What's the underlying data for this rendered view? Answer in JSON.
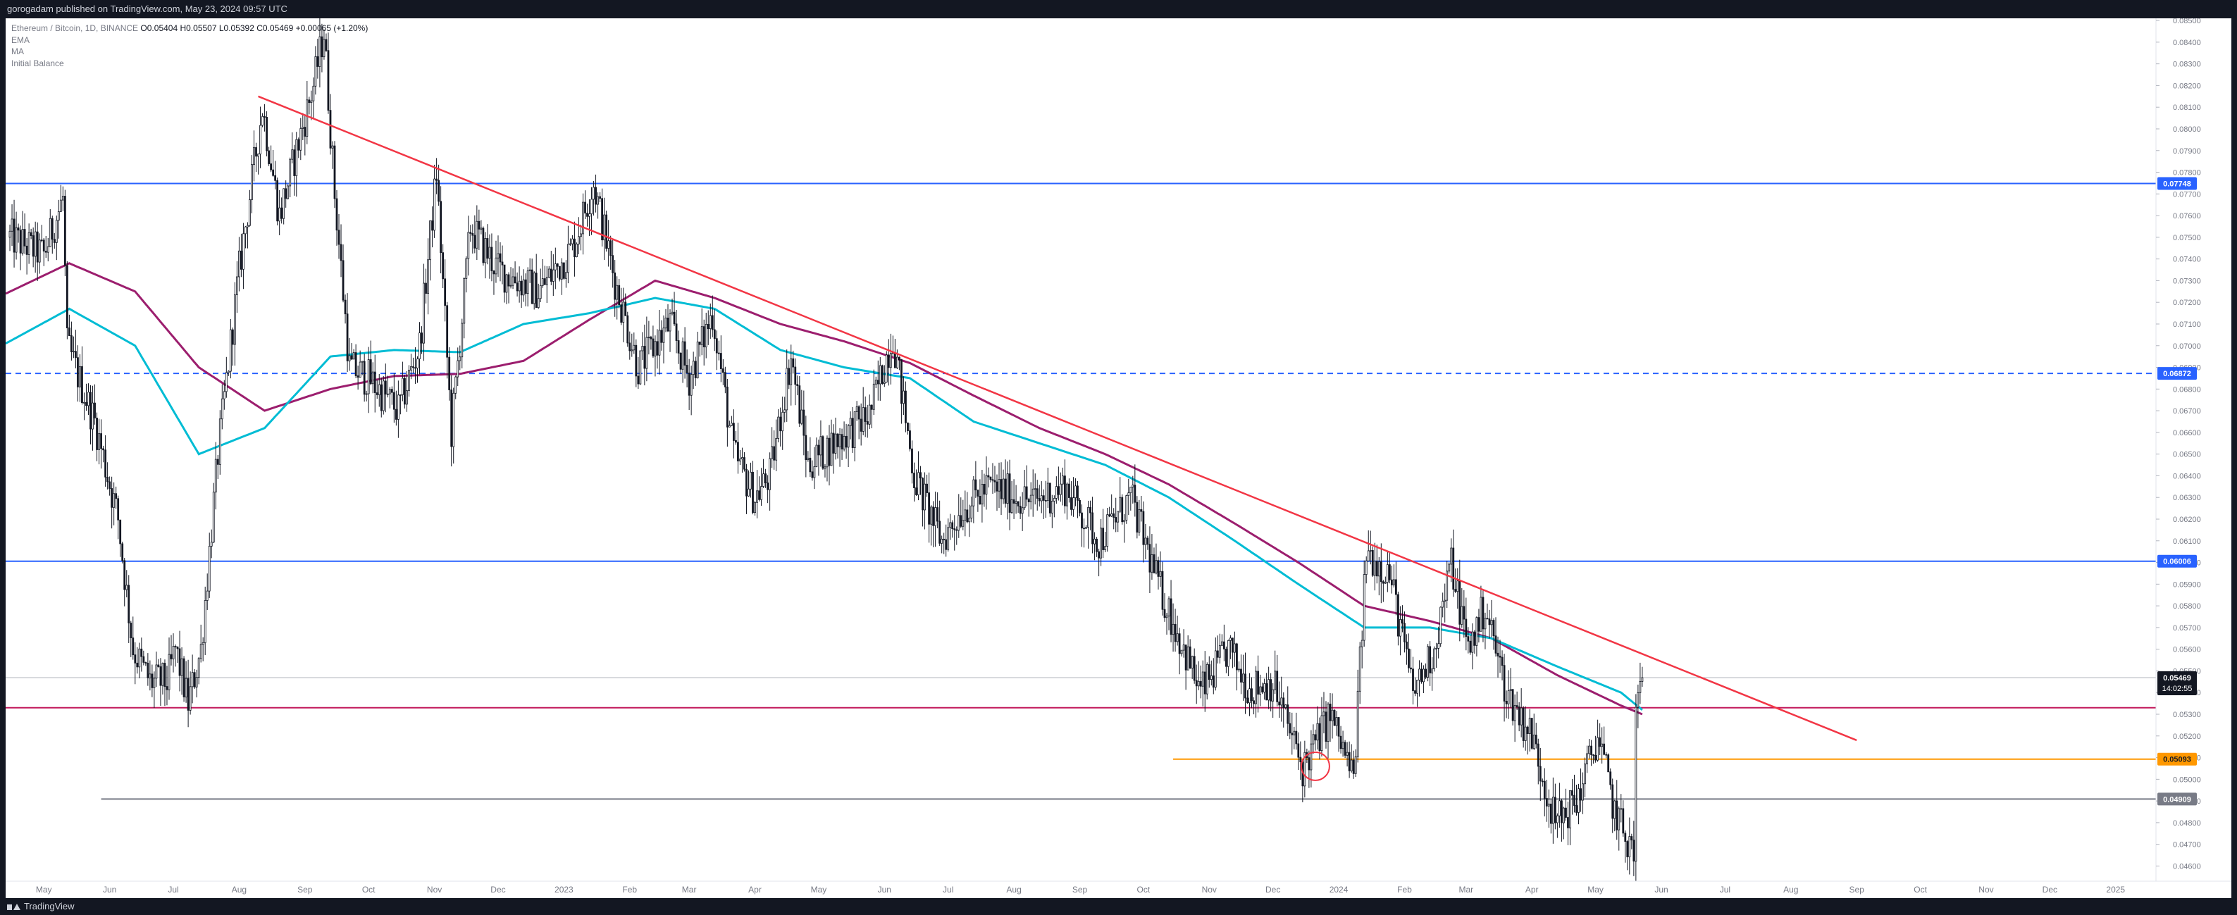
{
  "header": {
    "publisher": "gorogadam published on TradingView.com, May 23, 2024 09:57 UTC"
  },
  "legend": {
    "symbol": "Ethereum / Bitcoin, 1D, BINANCE",
    "ohlc": "O0.05404 H0.05507 L0.05392 C0.05469 +0.00065 (+1.20%)",
    "indicators": [
      "EMA",
      "MA",
      "Initial Balance"
    ]
  },
  "footer": {
    "brand": "TradingView"
  },
  "colors": {
    "ema": "#00bcd4",
    "ma": "#9c1e6e",
    "trendline": "#f23645",
    "hline_blue": "#2962ff",
    "hline_support_red": "#c2185b",
    "hline_orange": "#ff9800",
    "hline_gray": "#787b86",
    "candle": "#131722"
  },
  "chart_data": {
    "type": "candlestick",
    "symbol": "ETH/BTC",
    "timeframe": "1D",
    "exchange": "BINANCE",
    "ylim": [
      0.0453,
      0.0851
    ],
    "y_ticks": [
      "0.08500",
      "0.08400",
      "0.08300",
      "0.08200",
      "0.08100",
      "0.08000",
      "0.07900",
      "0.07800",
      "0.07700",
      "0.07600",
      "0.07500",
      "0.07400",
      "0.07300",
      "0.07200",
      "0.07100",
      "0.07000",
      "0.06900",
      "0.06800",
      "0.06700",
      "0.06600",
      "0.06500",
      "0.06400",
      "0.06300",
      "0.06200",
      "0.06100",
      "0.06000",
      "0.05900",
      "0.05800",
      "0.05700",
      "0.05600",
      "0.05500",
      "0.05400",
      "0.05300",
      "0.05200",
      "0.05100",
      "0.05000",
      "0.04900",
      "0.04800",
      "0.04700",
      "0.04600"
    ],
    "x_ticks": [
      "May",
      "Jun",
      "Jul",
      "Aug",
      "Sep",
      "Oct",
      "Nov",
      "Dec",
      "2023",
      "Feb",
      "Mar",
      "Apr",
      "May",
      "Jun",
      "Jul",
      "Aug",
      "Sep",
      "Oct",
      "Nov",
      "Dec",
      "2024",
      "Feb",
      "Mar",
      "Apr",
      "May",
      "Jun",
      "Jul",
      "Aug",
      "Sep",
      "Oct",
      "Nov",
      "Dec",
      "2025"
    ],
    "x_range": [
      "2022-04-13",
      "2025-01-20"
    ],
    "price_path": [
      [
        "2022-04-15",
        0.075
      ],
      [
        "2022-05-01",
        0.0742
      ],
      [
        "2022-05-10",
        0.0768
      ],
      [
        "2022-05-12",
        0.07
      ],
      [
        "2022-05-25",
        0.0665
      ],
      [
        "2022-06-05",
        0.062
      ],
      [
        "2022-06-12",
        0.056
      ],
      [
        "2022-06-20",
        0.0545
      ],
      [
        "2022-06-28",
        0.0545
      ],
      [
        "2022-07-02",
        0.056
      ],
      [
        "2022-07-08",
        0.0535
      ],
      [
        "2022-07-14",
        0.056
      ],
      [
        "2022-07-22",
        0.065
      ],
      [
        "2022-08-01",
        0.0735
      ],
      [
        "2022-08-12",
        0.081
      ],
      [
        "2022-08-20",
        0.076
      ],
      [
        "2022-08-28",
        0.079
      ],
      [
        "2022-09-05",
        0.082
      ],
      [
        "2022-09-10",
        0.0845
      ],
      [
        "2022-09-15",
        0.077
      ],
      [
        "2022-09-22",
        0.069
      ],
      [
        "2022-10-01",
        0.0685
      ],
      [
        "2022-10-15",
        0.067
      ],
      [
        "2022-10-25",
        0.07
      ],
      [
        "2022-11-02",
        0.078
      ],
      [
        "2022-11-09",
        0.066
      ],
      [
        "2022-11-18",
        0.0755
      ],
      [
        "2022-12-01",
        0.0735
      ],
      [
        "2022-12-20",
        0.0725
      ],
      [
        "2023-01-05",
        0.0745
      ],
      [
        "2023-01-15",
        0.0775
      ],
      [
        "2023-01-25",
        0.073
      ],
      [
        "2023-02-05",
        0.069
      ],
      [
        "2023-02-20",
        0.071
      ],
      [
        "2023-03-01",
        0.0685
      ],
      [
        "2023-03-12",
        0.0715
      ],
      [
        "2023-03-22",
        0.065
      ],
      [
        "2023-04-01",
        0.063
      ],
      [
        "2023-04-08",
        0.064
      ],
      [
        "2023-04-18",
        0.0695
      ],
      [
        "2023-04-26",
        0.0645
      ],
      [
        "2023-05-08",
        0.0655
      ],
      [
        "2023-05-25",
        0.0668
      ],
      [
        "2023-06-05",
        0.0705
      ],
      [
        "2023-06-15",
        0.064
      ],
      [
        "2023-06-28",
        0.061
      ],
      [
        "2023-07-08",
        0.0625
      ],
      [
        "2023-07-20",
        0.0635
      ],
      [
        "2023-08-10",
        0.0628
      ],
      [
        "2023-08-25",
        0.0635
      ],
      [
        "2023-09-10",
        0.061
      ],
      [
        "2023-09-25",
        0.063
      ],
      [
        "2023-10-08",
        0.059
      ],
      [
        "2023-10-20",
        0.056
      ],
      [
        "2023-10-28",
        0.054
      ],
      [
        "2023-11-10",
        0.056
      ],
      [
        "2023-11-20",
        0.0542
      ],
      [
        "2023-12-01",
        0.0545
      ],
      [
        "2023-12-15",
        0.0505
      ],
      [
        "2023-12-28",
        0.053
      ],
      [
        "2024-01-08",
        0.05
      ],
      [
        "2024-01-14",
        0.0605
      ],
      [
        "2024-01-25",
        0.0595
      ],
      [
        "2024-02-05",
        0.054
      ],
      [
        "2024-02-15",
        0.056
      ],
      [
        "2024-02-23",
        0.06
      ],
      [
        "2024-03-02",
        0.056
      ],
      [
        "2024-03-10",
        0.058
      ],
      [
        "2024-03-20",
        0.054
      ],
      [
        "2024-04-01",
        0.052
      ],
      [
        "2024-04-12",
        0.048
      ],
      [
        "2024-04-22",
        0.049
      ],
      [
        "2024-05-02",
        0.052
      ],
      [
        "2024-05-10",
        0.0485
      ],
      [
        "2024-05-19",
        0.0465
      ],
      [
        "2024-05-20",
        0.053
      ],
      [
        "2024-05-23",
        0.05469
      ]
    ],
    "ema_path": [
      [
        "2022-04-13",
        0.0701
      ],
      [
        "2022-05-13",
        0.0717
      ],
      [
        "2022-06-13",
        0.07
      ],
      [
        "2022-07-13",
        0.065
      ],
      [
        "2022-08-13",
        0.0662
      ],
      [
        "2022-09-13",
        0.0695
      ],
      [
        "2022-10-13",
        0.0698
      ],
      [
        "2022-11-13",
        0.0697
      ],
      [
        "2022-12-13",
        0.071
      ],
      [
        "2023-01-13",
        0.0715
      ],
      [
        "2023-02-13",
        0.0722
      ],
      [
        "2023-03-13",
        0.0717
      ],
      [
        "2023-04-13",
        0.0698
      ],
      [
        "2023-05-13",
        0.069
      ],
      [
        "2023-06-13",
        0.0685
      ],
      [
        "2023-07-13",
        0.0665
      ],
      [
        "2023-08-13",
        0.0655
      ],
      [
        "2023-09-13",
        0.0645
      ],
      [
        "2023-10-13",
        0.063
      ],
      [
        "2023-11-13",
        0.061
      ],
      [
        "2023-12-13",
        0.059
      ],
      [
        "2024-01-13",
        0.057
      ],
      [
        "2024-02-13",
        0.057
      ],
      [
        "2024-03-13",
        0.0565
      ],
      [
        "2024-04-13",
        0.0552
      ],
      [
        "2024-05-13",
        0.054
      ],
      [
        "2024-05-23",
        0.0532
      ]
    ],
    "ma_path": [
      [
        "2022-04-13",
        0.0724
      ],
      [
        "2022-05-13",
        0.0738
      ],
      [
        "2022-06-13",
        0.0725
      ],
      [
        "2022-07-13",
        0.069
      ],
      [
        "2022-08-13",
        0.067
      ],
      [
        "2022-09-13",
        0.068
      ],
      [
        "2022-10-13",
        0.0686
      ],
      [
        "2022-11-13",
        0.0687
      ],
      [
        "2022-12-13",
        0.0693
      ],
      [
        "2023-01-13",
        0.0712
      ],
      [
        "2023-02-13",
        0.073
      ],
      [
        "2023-03-13",
        0.0722
      ],
      [
        "2023-04-13",
        0.071
      ],
      [
        "2023-05-13",
        0.0702
      ],
      [
        "2023-06-13",
        0.0692
      ],
      [
        "2023-07-13",
        0.0677
      ],
      [
        "2023-08-13",
        0.0662
      ],
      [
        "2023-09-13",
        0.065
      ],
      [
        "2023-10-13",
        0.0636
      ],
      [
        "2023-11-13",
        0.0618
      ],
      [
        "2023-12-13",
        0.06
      ],
      [
        "2024-01-13",
        0.058
      ],
      [
        "2024-02-13",
        0.0573
      ],
      [
        "2024-03-13",
        0.0565
      ],
      [
        "2024-04-13",
        0.0548
      ],
      [
        "2024-05-13",
        0.0534
      ],
      [
        "2024-05-23",
        0.053
      ]
    ],
    "trendline": [
      [
        "2022-08-10",
        0.0815
      ],
      [
        "2024-09-01",
        0.0518
      ]
    ],
    "horizontal_lines": [
      {
        "price": 0.07748,
        "label": "0.07748",
        "style": "solid",
        "color_key": "hline_blue"
      },
      {
        "price": 0.06872,
        "label": "0.06872",
        "style": "dashed",
        "color_key": "hline_blue"
      },
      {
        "price": 0.06006,
        "label": "0.06006",
        "style": "solid",
        "color_key": "hline_blue"
      },
      {
        "price": 0.0533,
        "label": "",
        "style": "solid",
        "color_key": "hline_support_red",
        "from": "2022-04-13"
      },
      {
        "price": 0.05093,
        "label": "0.05093",
        "style": "solid",
        "color_key": "hline_orange",
        "from": "2023-10-15"
      },
      {
        "price": 0.04909,
        "label": "0.04909",
        "style": "solid",
        "color_key": "hline_gray",
        "from": "2022-05-28"
      }
    ],
    "last_price": {
      "price": 0.05469,
      "label": "0.05469",
      "countdown": "14:02:55"
    },
    "circle_marker": [
      "2023-12-21",
      0.0506
    ]
  }
}
